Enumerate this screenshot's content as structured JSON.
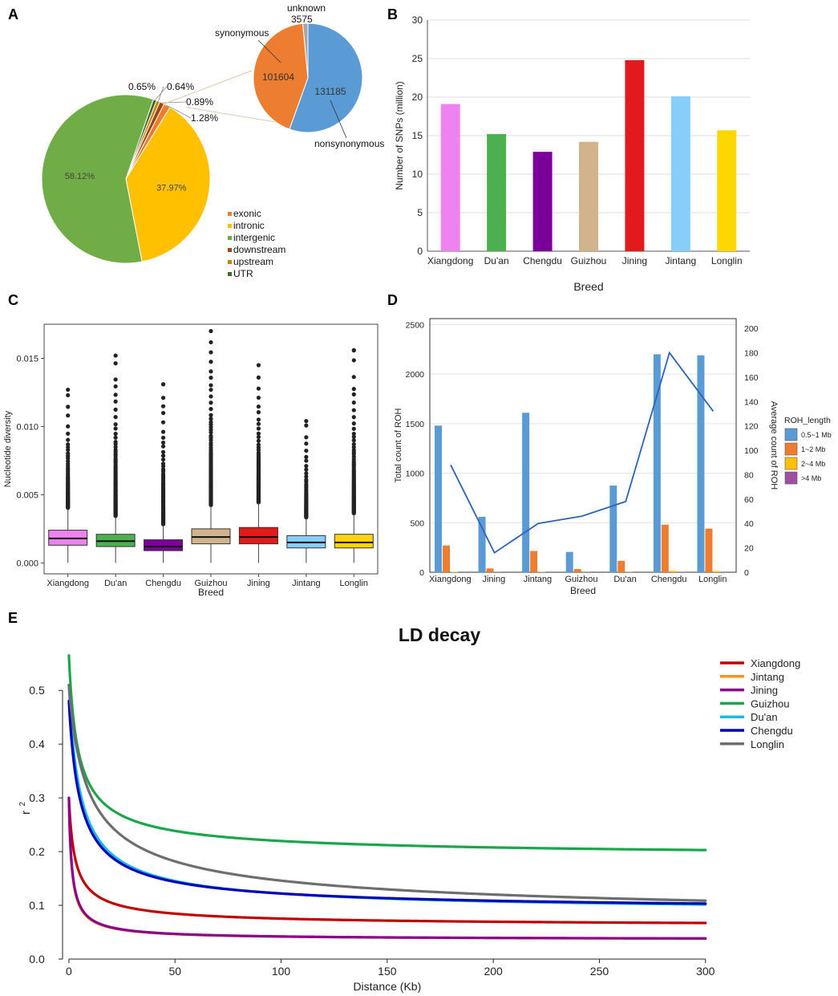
{
  "panels": {
    "A": "A",
    "B": "B",
    "C": "C",
    "D": "D",
    "E": "E"
  },
  "chart_data": [
    {
      "id": "A",
      "type": "pie",
      "labels": [
        "exonic",
        "intronic",
        "intergenic",
        "downstream",
        "upstream",
        "UTR"
      ],
      "values": [
        1.28,
        37.97,
        58.12,
        0.89,
        0.65,
        0.64
      ],
      "slice_labels": [
        "1.28%",
        "37.97%",
        "58.12%",
        "0.89%",
        "0.65%",
        "0.64%"
      ],
      "colors": [
        "#ED7D31",
        "#FFC000",
        "#70AD47",
        "#9E480E",
        "#C5830F",
        "#43682B"
      ],
      "legend": [
        "exonic",
        "intronic",
        "intergenic",
        "downstream",
        "upstream",
        "UTR"
      ],
      "inset": {
        "type": "pie",
        "labels": [
          "nonsynonymous",
          "synonymous",
          "unknown"
        ],
        "values": [
          131185,
          101604,
          3575
        ],
        "value_labels": [
          "131185",
          "101604",
          "3575"
        ],
        "colors": [
          "#5B9BD5",
          "#ED7D31",
          "#A5A5A5"
        ]
      }
    },
    {
      "id": "B",
      "type": "bar",
      "categories": [
        "Xiangdong",
        "Du'an",
        "Chengdu",
        "Guizhou",
        "Jining",
        "Jintang",
        "Longlin"
      ],
      "values": [
        19.1,
        15.2,
        12.9,
        14.2,
        24.8,
        20.1,
        15.7
      ],
      "colors": [
        "#EE82EE",
        "#4CAF50",
        "#7B0099",
        "#D2B48C",
        "#E31A1C",
        "#87CEFA",
        "#FFD700"
      ],
      "xlabel": "Breed",
      "ylabel": "Number of SNPs (million)",
      "ylim": [
        0,
        30
      ],
      "yticks": [
        "0",
        "5",
        "10",
        "15",
        "20",
        "25",
        "30"
      ]
    },
    {
      "id": "C",
      "type": "boxplot",
      "categories": [
        "Xiangdong",
        "Du'an",
        "Chengdu",
        "Guizhou",
        "Jining",
        "Jintang",
        "Longlin"
      ],
      "colors": [
        "#EE82EE",
        "#4CAF50",
        "#7B0099",
        "#D2B48C",
        "#E31A1C",
        "#87CEFA",
        "#FFD700"
      ],
      "q1": [
        0.0013,
        0.0012,
        0.0009,
        0.0014,
        0.0014,
        0.0011,
        0.0011
      ],
      "median": [
        0.0018,
        0.0016,
        0.0012,
        0.0019,
        0.0019,
        0.0015,
        0.0015
      ],
      "q3": [
        0.0024,
        0.0021,
        0.0017,
        0.0025,
        0.0026,
        0.002,
        0.0021
      ],
      "whisker_low": [
        0.0,
        0.0,
        0.0,
        0.0,
        0.0,
        0.0,
        0.0
      ],
      "whisker_high": [
        0.004,
        0.0034,
        0.0028,
        0.0042,
        0.0044,
        0.0033,
        0.0036
      ],
      "outlier_max": [
        0.0127,
        0.0152,
        0.0131,
        0.017,
        0.0145,
        0.0104,
        0.0156
      ],
      "xlabel": "Breed",
      "ylabel": "Nucleotide diversity",
      "ylim": [
        -0.0008,
        0.0175
      ],
      "yticks": [
        "0.000",
        "0.005",
        "0.010",
        "0.015"
      ]
    },
    {
      "id": "D",
      "type": "bar",
      "categories": [
        "Xiangdong",
        "Jining",
        "Jintang",
        "Guizhou",
        "Du'an",
        "Chengdu",
        "Longlin"
      ],
      "series": [
        {
          "name": "0.5~1 Mb",
          "color": "#5B9BD5",
          "values": [
            1480,
            560,
            1610,
            205,
            875,
            2200,
            2190
          ]
        },
        {
          "name": "1~2 Mb",
          "color": "#ED7D31",
          "values": [
            270,
            38,
            215,
            32,
            115,
            480,
            440
          ]
        },
        {
          "name": "2~4 Mb",
          "color": "#FFC000",
          "values": [
            4,
            1,
            3,
            1,
            2,
            14,
            12
          ]
        },
        {
          "name": ">4 Mb",
          "color": "#A050A0",
          "values": [
            0,
            0,
            0,
            0,
            0,
            2,
            1
          ]
        }
      ],
      "line": {
        "name": "Average count of ROH",
        "color": "#2E62B5",
        "values": [
          88,
          16,
          40,
          46,
          58,
          180,
          132
        ]
      },
      "xlabel": "Breed",
      "ylabel": "Total count of ROH",
      "y2label": "Average count of ROH",
      "ylim": [
        0,
        2560
      ],
      "y2lim": [
        0,
        208
      ],
      "yticks": [
        "0",
        "500",
        "1000",
        "1500",
        "2000",
        "2500"
      ],
      "y2ticks": [
        "0",
        "20",
        "40",
        "60",
        "80",
        "100",
        "120",
        "140",
        "160",
        "180",
        "200"
      ],
      "legend_title": "ROH_length",
      "legend": [
        "0.5~1 Mb",
        "1~2 Mb",
        "2~4 Mb",
        ">4 Mb"
      ]
    },
    {
      "id": "E",
      "type": "line",
      "title": "LD decay",
      "xlabel": "Distance  (Kb)",
      "ylabel": "r",
      "ylabel_sup": "2",
      "xlim": [
        -3,
        305
      ],
      "ylim": [
        0,
        0.575
      ],
      "xticks": [
        "0",
        "50",
        "100",
        "150",
        "200",
        "250",
        "300"
      ],
      "yticks": [
        "0.0",
        "0.1",
        "0.2",
        "0.3",
        "0.4",
        "0.5"
      ],
      "series": [
        {
          "name": "Xiangdong",
          "color": "#C00000",
          "start": 0.3,
          "end": 0.06,
          "k": 2.0,
          "tail": 0.7
        },
        {
          "name": "Jintang",
          "color": "#F7941D",
          "start": 0.29,
          "end": 0.036,
          "k": 1.2,
          "tail": 0.85
        },
        {
          "name": "Jining",
          "color": "#8B008B",
          "start": 0.3,
          "end": 0.036,
          "k": 1.2,
          "tail": 0.85
        },
        {
          "name": "Guizhou",
          "color": "#1AA64B",
          "start": 0.565,
          "end": 0.188,
          "k": 3.0,
          "tail": 0.7
        },
        {
          "name": "Du'an",
          "color": "#1EB8E6",
          "start": 0.51,
          "end": 0.085,
          "k": 4.0,
          "tail": 0.75
        },
        {
          "name": "Chengdu",
          "color": "#0000B8",
          "start": 0.48,
          "end": 0.088,
          "k": 4.0,
          "tail": 0.75
        },
        {
          "name": "Longlin",
          "color": "#6E6E6E",
          "start": 0.51,
          "end": 0.062,
          "k": 5.0,
          "tail": 0.55
        }
      ]
    }
  ]
}
